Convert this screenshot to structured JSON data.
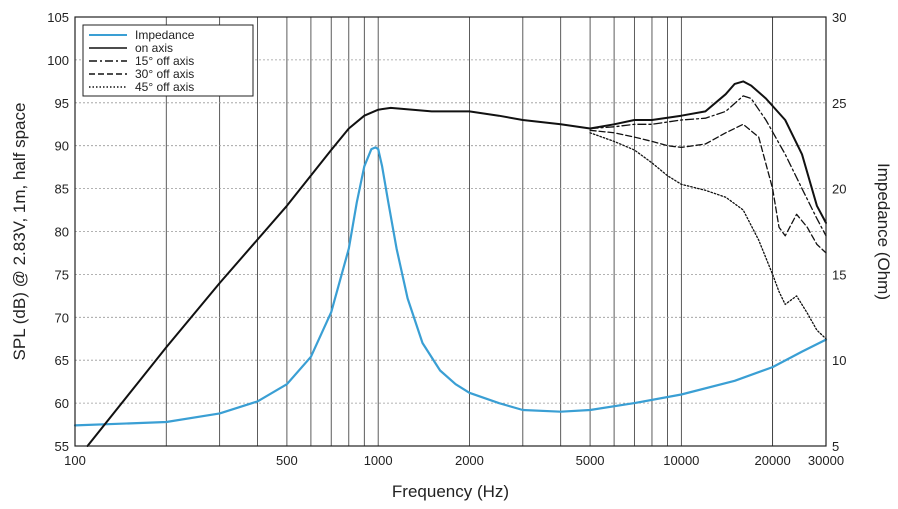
{
  "chart_data": {
    "type": "line",
    "xlabel": "Frequency (Hz)",
    "ylabel": "SPL (dB) @ 2.83V, 1m, half space",
    "y2label": "Impedance (Ohm)",
    "xscale": "log",
    "xlim": [
      100,
      30000
    ],
    "ylim": [
      55,
      105
    ],
    "y2lim": [
      5,
      30
    ],
    "grid": true,
    "legend_position": "top-left",
    "x_ticks": [
      100,
      500,
      1000,
      2000,
      5000,
      10000,
      20000,
      30000
    ],
    "x_tick_labels": [
      "100",
      "500",
      "1000",
      "2000",
      "5000",
      "10000",
      "20000",
      "30000"
    ],
    "y_ticks": [
      55,
      60,
      65,
      70,
      75,
      80,
      85,
      90,
      95,
      100,
      105
    ],
    "y_tick_labels": [
      "55",
      "60",
      "65",
      "70",
      "75",
      "80",
      "85",
      "90",
      "95",
      "100",
      "105"
    ],
    "y2_ticks": [
      5,
      10,
      15,
      20,
      25,
      30
    ],
    "y2_tick_labels": [
      "5",
      "10",
      "15",
      "20",
      "25",
      "30"
    ],
    "series": [
      {
        "name": "Impedance",
        "axis": "right",
        "color": "#3a9fd4",
        "dash": "solid",
        "x": [
          100,
          200,
          300,
          400,
          500,
          600,
          700,
          800,
          850,
          900,
          950,
          980,
          1000,
          1030,
          1080,
          1150,
          1250,
          1400,
          1600,
          1800,
          2000,
          2500,
          3000,
          4000,
          5000,
          7000,
          10000,
          15000,
          20000,
          25000,
          30000
        ],
        "values": [
          6.2,
          6.4,
          6.9,
          7.6,
          8.6,
          10.2,
          12.8,
          16.5,
          19.2,
          21.3,
          22.3,
          22.4,
          22.3,
          21.3,
          19.2,
          16.5,
          13.6,
          11.0,
          9.4,
          8.6,
          8.1,
          7.5,
          7.1,
          7.0,
          7.1,
          7.5,
          8.0,
          8.8,
          9.6,
          10.5,
          11.2
        ]
      },
      {
        "name": "on axis",
        "axis": "left",
        "color": "#111111",
        "dash": "solid",
        "x": [
          110,
          200,
          300,
          500,
          700,
          800,
          900,
          1000,
          1100,
          1300,
          1500,
          2000,
          2500,
          3000,
          4000,
          5000,
          6000,
          7000,
          8000,
          10000,
          12000,
          14000,
          15000,
          16000,
          17000,
          19000,
          22000,
          25000,
          28000,
          30000
        ],
        "values": [
          55.0,
          66.5,
          74.0,
          83.0,
          89.5,
          92.0,
          93.5,
          94.2,
          94.4,
          94.2,
          94.0,
          94.0,
          93.5,
          93.0,
          92.5,
          92.0,
          92.5,
          93.0,
          93.0,
          93.5,
          94.0,
          96.0,
          97.2,
          97.5,
          97.0,
          95.5,
          93.0,
          89.0,
          83.0,
          81.0
        ]
      },
      {
        "name": "15° off axis",
        "axis": "left",
        "color": "#111111",
        "dash": "dashdot",
        "x": [
          5000,
          6000,
          7000,
          8000,
          10000,
          12000,
          14000,
          16000,
          17000,
          19000,
          22000,
          25000,
          28000,
          30000
        ],
        "values": [
          92.0,
          92.2,
          92.5,
          92.5,
          93.0,
          93.2,
          94.0,
          95.8,
          95.5,
          93.0,
          89.0,
          85.0,
          81.5,
          79.5
        ]
      },
      {
        "name": "30° off axis",
        "axis": "left",
        "color": "#111111",
        "dash": "dashed",
        "x": [
          5000,
          6000,
          7000,
          8000,
          9000,
          10000,
          12000,
          14000,
          16000,
          18000,
          20000,
          21000,
          22000,
          24000,
          26000,
          28000,
          30000
        ],
        "values": [
          91.8,
          91.5,
          91.0,
          90.5,
          90.0,
          89.8,
          90.2,
          91.5,
          92.5,
          91.0,
          85.0,
          80.5,
          79.5,
          82.0,
          80.5,
          78.5,
          77.5
        ]
      },
      {
        "name": "45° off axis",
        "axis": "left",
        "color": "#111111",
        "dash": "dotted",
        "x": [
          5000,
          6000,
          7000,
          8000,
          9000,
          10000,
          12000,
          14000,
          16000,
          18000,
          20000,
          21000,
          22000,
          24000,
          26000,
          28000,
          30000
        ],
        "values": [
          91.5,
          90.5,
          89.5,
          88.0,
          86.5,
          85.5,
          84.8,
          84.0,
          82.5,
          79.0,
          75.0,
          73.0,
          71.5,
          72.5,
          70.5,
          68.5,
          67.5
        ]
      }
    ]
  }
}
